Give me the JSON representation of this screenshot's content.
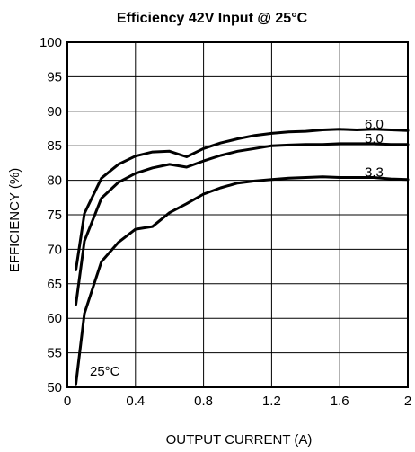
{
  "chart_data": {
    "type": "line",
    "title": "Efficiency 42V Input @ 25°C",
    "xlabel": "OUTPUT CURRENT (A)",
    "ylabel": "EFFICIENCY (%)",
    "xlim": [
      0,
      2
    ],
    "ylim": [
      50,
      100
    ],
    "x_ticks": [
      0,
      0.4,
      0.8,
      1.2,
      1.6,
      2
    ],
    "x_tick_labels": [
      "0",
      "0.4",
      "0.8",
      "1.2",
      "1.6",
      "2"
    ],
    "y_ticks": [
      50,
      55,
      60,
      65,
      70,
      75,
      80,
      85,
      90,
      95,
      100
    ],
    "y_tick_labels": [
      "50",
      "55",
      "60",
      "65",
      "70",
      "75",
      "80",
      "85",
      "90",
      "95",
      "100"
    ],
    "grid": true,
    "annotation": "25°C",
    "series": [
      {
        "name": "6.0",
        "x": [
          0.05,
          0.1,
          0.2,
          0.3,
          0.4,
          0.5,
          0.6,
          0.7,
          0.8,
          0.9,
          1.0,
          1.1,
          1.2,
          1.3,
          1.4,
          1.5,
          1.6,
          1.7,
          1.8,
          1.9,
          2.0
        ],
        "y": [
          67,
          75.2,
          80.3,
          82.3,
          83.5,
          84.1,
          84.2,
          83.4,
          84.6,
          85.4,
          86.0,
          86.5,
          86.8,
          87.0,
          87.1,
          87.3,
          87.4,
          87.3,
          87.4,
          87.3,
          87.2
        ]
      },
      {
        "name": "5.0",
        "x": [
          0.05,
          0.1,
          0.2,
          0.3,
          0.4,
          0.5,
          0.6,
          0.7,
          0.8,
          0.9,
          1.0,
          1.1,
          1.2,
          1.3,
          1.4,
          1.5,
          1.6,
          1.7,
          1.8,
          1.9,
          2.0
        ],
        "y": [
          62,
          71.2,
          77.4,
          79.7,
          81.0,
          81.8,
          82.3,
          81.9,
          82.8,
          83.6,
          84.2,
          84.6,
          85.0,
          85.1,
          85.2,
          85.2,
          85.3,
          85.3,
          85.3,
          85.2,
          85.2
        ]
      },
      {
        "name": "3.3",
        "x": [
          0.05,
          0.1,
          0.2,
          0.3,
          0.4,
          0.5,
          0.6,
          0.7,
          0.8,
          0.9,
          1.0,
          1.1,
          1.2,
          1.3,
          1.4,
          1.5,
          1.6,
          1.7,
          1.8,
          1.9,
          2.0
        ],
        "y": [
          50.5,
          60.7,
          68.2,
          71.0,
          72.9,
          73.3,
          75.3,
          76.6,
          78.0,
          78.9,
          79.6,
          79.9,
          80.1,
          80.3,
          80.4,
          80.5,
          80.4,
          80.4,
          80.4,
          80.2,
          80.1
        ]
      }
    ]
  }
}
